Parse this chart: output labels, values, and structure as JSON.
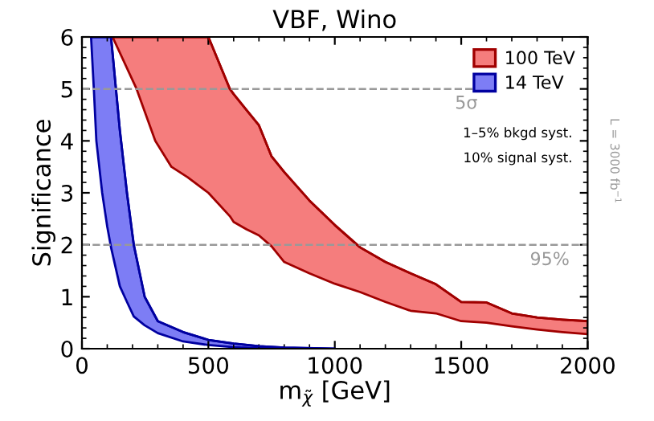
{
  "chart_data": {
    "type": "line",
    "title": "VBF, Wino",
    "xlabel": "m$_{χ̃}$ [GeV]",
    "ylabel": "Significance",
    "xlim": [
      0,
      2000
    ],
    "xticks": [
      0,
      500,
      1000,
      1500,
      2000
    ],
    "ylim": [
      0,
      6
    ],
    "yticks": [
      0,
      1,
      2,
      3,
      4,
      5,
      6
    ],
    "grid": false,
    "legend": "top right",
    "series": [
      {
        "name": "100 TeV",
        "color": "#a00000",
        "x": [
          121,
          216,
          290,
          354,
          418,
          500,
          585,
          600,
          650,
          700,
          750,
          800,
          900,
          1000,
          1100,
          1200,
          1300,
          1400,
          1500,
          1600,
          1700,
          1800,
          1900,
          2000
        ],
        "values": [
          6,
          6,
          6,
          6,
          6,
          6,
          5,
          4.9,
          4.6,
          4.3,
          3.7,
          3.4,
          2.85,
          2.38,
          1.95,
          1.67,
          1.45,
          1.24,
          0.9,
          0.89,
          0.68,
          0.6,
          0.56,
          0.53
        ],
        "lower": [
          6,
          5,
          4,
          3.5,
          3.3,
          3.0,
          2.55,
          2.44,
          2.3,
          2.18,
          1.97,
          1.67,
          1.45,
          1.25,
          1.09,
          0.9,
          0.73,
          0.68,
          0.53,
          0.5,
          0.43,
          0.37,
          0.32,
          0.28
        ],
        "upper": [
          6,
          6,
          6,
          6,
          6,
          6,
          5,
          4.9,
          4.6,
          4.3,
          3.7,
          3.4,
          2.85,
          2.38,
          1.95,
          1.67,
          1.45,
          1.24,
          0.9,
          0.89,
          0.68,
          0.6,
          0.56,
          0.53
        ]
      },
      {
        "name": "14 TeV",
        "color": "#0000a0",
        "x": [
          36,
          47,
          57,
          80,
          100,
          115,
          150,
          178,
          205,
          248,
          300,
          400,
          500,
          600,
          700,
          800,
          1000
        ],
        "values": [
          6,
          6,
          6,
          6,
          6,
          6,
          4.2,
          3,
          2,
          1,
          0.53,
          0.32,
          0.17,
          0.1,
          0.05,
          0.02,
          0
        ],
        "lower": [
          6,
          5,
          4,
          3,
          2.35,
          1.95,
          1.2,
          0.9,
          0.62,
          0.45,
          0.3,
          0.14,
          0.07,
          0.03,
          0.01,
          0,
          0
        ],
        "upper": [
          6,
          6,
          6,
          6,
          6,
          6,
          4.2,
          3,
          2,
          1,
          0.53,
          0.32,
          0.17,
          0.1,
          0.05,
          0.02,
          0
        ]
      }
    ],
    "ref_lines": [
      {
        "axis": "y",
        "value": 5,
        "label": "5σ",
        "color": "#999999",
        "line_style": "dashed"
      },
      {
        "axis": "y",
        "value": 2,
        "color": "#999999",
        "line_style": "dashed"
      }
    ],
    "annotations": [
      "1–5% bkgd syst.",
      "10% signal syst.",
      "L = 3000 fb$^{−1}$",
      {
        "text": "95%",
        "x": 1850,
        "y": 2
      }
    ]
  }
}
